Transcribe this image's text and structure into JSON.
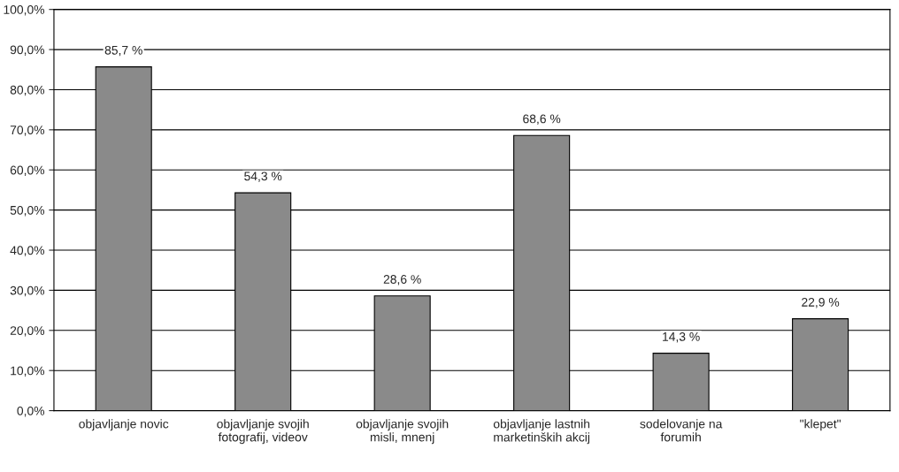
{
  "chart_data": {
    "type": "bar",
    "categories": [
      "objavljanje novic",
      "objavljanje svojih\nfotografij, videov",
      "objavljanje svojih\nmisli, mnenj",
      "objavljanje lastnih\nmarketinških akcij",
      "sodelovanje na\nforumih",
      "\"klepet\""
    ],
    "values": [
      85.7,
      54.3,
      28.6,
      68.6,
      14.3,
      22.9
    ],
    "value_labels": [
      "85,7 %",
      "54,3 %",
      "28,6 %",
      "68,6 %",
      "14,3 %",
      "22,9 %"
    ],
    "color": "#8a8a8a",
    "ylim": [
      0,
      100
    ],
    "yticks": [
      {
        "value": 0,
        "label": "0,0%"
      },
      {
        "value": 10,
        "label": "10,0%"
      },
      {
        "value": 20,
        "label": "20,0%"
      },
      {
        "value": 30,
        "label": "30,0%"
      },
      {
        "value": 40,
        "label": "40,0%"
      },
      {
        "value": 50,
        "label": "50,0%"
      },
      {
        "value": 60,
        "label": "60,0%"
      },
      {
        "value": 70,
        "label": "70,0%"
      },
      {
        "value": 80,
        "label": "80,0%"
      },
      {
        "value": 90,
        "label": "90,0%"
      },
      {
        "value": 100,
        "label": "100,0%"
      }
    ],
    "grid": "y",
    "legend": false
  }
}
